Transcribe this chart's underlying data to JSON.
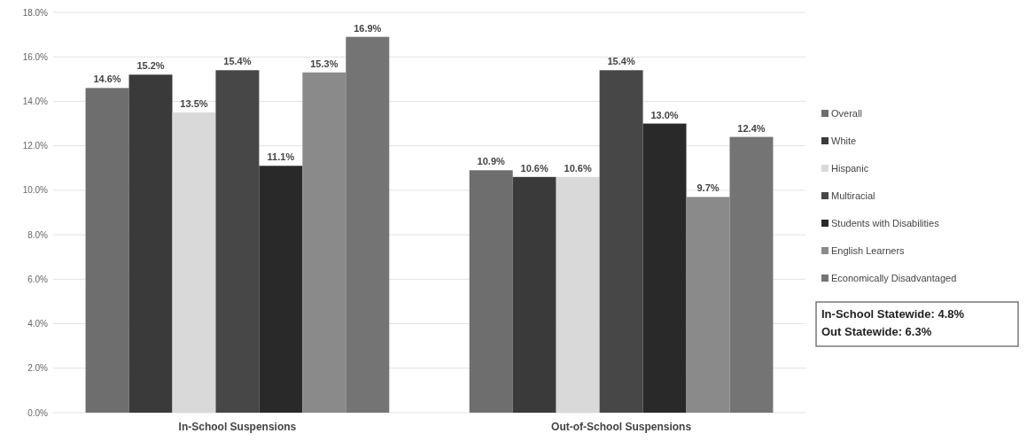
{
  "chart_data": {
    "type": "bar",
    "categories": [
      "In-School Suspensions",
      "Out-of-School Suspensions"
    ],
    "series": [
      {
        "name": "Overall",
        "color": "#6e6e6e",
        "values": [
          14.6,
          10.9
        ],
        "value_labels": [
          "14.6%",
          "10.9%"
        ]
      },
      {
        "name": "White",
        "color": "#3a3a3a",
        "values": [
          15.2,
          10.6
        ],
        "value_labels": [
          "15.2%",
          "10.6%"
        ]
      },
      {
        "name": "Hispanic",
        "color": "#d9d9d9",
        "values": [
          13.5,
          10.6
        ],
        "value_labels": [
          "13.5%",
          "10.6%"
        ]
      },
      {
        "name": "Multiracial",
        "color": "#474747",
        "values": [
          15.4,
          15.4
        ],
        "value_labels": [
          "15.4%",
          "15.4%"
        ]
      },
      {
        "name": "Students with Disabilities",
        "color": "#292929",
        "values": [
          11.1,
          13.0
        ],
        "value_labels": [
          "11.1%",
          "13.0%"
        ]
      },
      {
        "name": "English Learners",
        "color": "#8a8a8a",
        "values": [
          15.3,
          9.7
        ],
        "value_labels": [
          "15.3%",
          "9.7%"
        ]
      },
      {
        "name": "Economically Disadvantaged",
        "color": "#747474",
        "values": [
          16.9,
          12.4
        ],
        "value_labels": [
          "16.9%",
          "12.4%"
        ]
      }
    ],
    "ylim": [
      0,
      18
    ],
    "yticks": [
      {
        "value": 0,
        "label": "0.0%"
      },
      {
        "value": 2,
        "label": "2.0%"
      },
      {
        "value": 4,
        "label": "4.0%"
      },
      {
        "value": 6,
        "label": "6.0%"
      },
      {
        "value": 8,
        "label": "8.0%"
      },
      {
        "value": 10,
        "label": "10.0%"
      },
      {
        "value": 12,
        "label": "12.0%"
      },
      {
        "value": 14,
        "label": "14.0%"
      },
      {
        "value": 16,
        "label": "16.0%"
      },
      {
        "value": 18,
        "label": "18.0%"
      }
    ],
    "grid": "y",
    "legend": "right",
    "annotations": [
      "In-School Statewide: 4.8%",
      "Out Statewide: 6.3%"
    ]
  }
}
